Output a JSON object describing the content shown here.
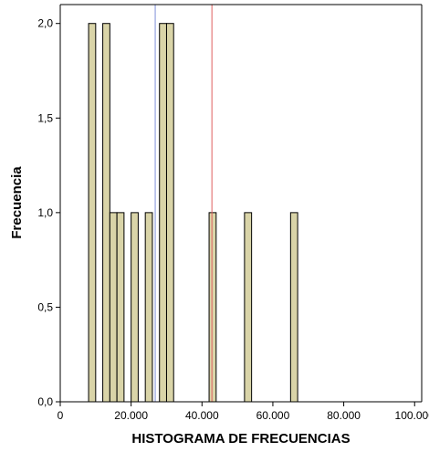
{
  "chart_data": {
    "type": "bar",
    "title": "",
    "xlabel": "HISTOGRAMA DE FRECUENCIAS",
    "ylabel": "Frecuencia",
    "xlim": [
      0,
      102000
    ],
    "ylim": [
      0,
      2.1
    ],
    "x_ticks": [
      {
        "value": 0,
        "label": "0"
      },
      {
        "value": 20000,
        "label": "20.000"
      },
      {
        "value": 40000,
        "label": "40.000"
      },
      {
        "value": 60000,
        "label": "60.000"
      },
      {
        "value": 80000,
        "label": "80.000"
      },
      {
        "value": 100000,
        "label": "100.000"
      }
    ],
    "y_ticks": [
      {
        "value": 0,
        "label": "0,0"
      },
      {
        "value": 0.5,
        "label": "0,5"
      },
      {
        "value": 1.0,
        "label": "1,0"
      },
      {
        "value": 1.5,
        "label": "1,5"
      },
      {
        "value": 2.0,
        "label": "2,0"
      }
    ],
    "bin_width": 2000,
    "bins": [
      {
        "x": 8000,
        "value": 2
      },
      {
        "x": 12000,
        "value": 2
      },
      {
        "x": 14000,
        "value": 1
      },
      {
        "x": 16000,
        "value": 1
      },
      {
        "x": 20000,
        "value": 1
      },
      {
        "x": 24000,
        "value": 1
      },
      {
        "x": 28000,
        "value": 2
      },
      {
        "x": 30000,
        "value": 2
      },
      {
        "x": 42000,
        "value": 1
      },
      {
        "x": 52000,
        "value": 1
      },
      {
        "x": 65000,
        "value": 1
      }
    ],
    "reference_lines": [
      {
        "x": 26800,
        "color": "#7f8fd8"
      },
      {
        "x": 42800,
        "color": "#e06060"
      }
    ],
    "grid": false,
    "legend": "none",
    "bar_color": "#d9d4a8",
    "bar_edge_color": "#000000"
  }
}
